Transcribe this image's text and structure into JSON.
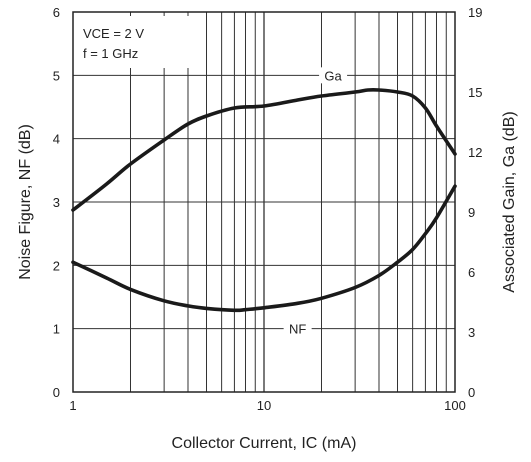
{
  "chart_data": {
    "type": "line",
    "title": "",
    "xlabel": "Collector Current, IC (mA)",
    "ylabel_left": "Noise Figure, NF (dB)",
    "ylabel_right": "Associated Gain, Ga (dB)",
    "x_scale": "log",
    "xlim": [
      1,
      100
    ],
    "ylim_left": [
      0,
      6
    ],
    "ylim_right": [
      0,
      19
    ],
    "x_tick_labels": [
      "1",
      "10",
      "100"
    ],
    "y_left_ticks": [
      0,
      1,
      2,
      3,
      4,
      5,
      6
    ],
    "y_right_ticks": [
      0,
      3,
      6,
      9,
      12,
      15,
      19
    ],
    "grid": true,
    "conditions": [
      "VCE = 2 V",
      "f = 1 GHz"
    ],
    "series": [
      {
        "name": "Ga",
        "axis": "right",
        "x": [
          1,
          1.5,
          2,
          3,
          4,
          5,
          7,
          10,
          15,
          20,
          30,
          35,
          40,
          50,
          60,
          70,
          80,
          100
        ],
        "values": [
          9.1,
          10.4,
          11.4,
          12.6,
          13.4,
          13.8,
          14.2,
          14.3,
          14.6,
          14.8,
          15.0,
          15.1,
          15.1,
          15.0,
          14.8,
          14.2,
          13.3,
          11.9
        ]
      },
      {
        "name": "NF",
        "axis": "left",
        "x": [
          1,
          1.5,
          2,
          3,
          4,
          5,
          7,
          8,
          10,
          15,
          20,
          30,
          40,
          50,
          60,
          70,
          80,
          100
        ],
        "values": [
          2.05,
          1.8,
          1.62,
          1.44,
          1.36,
          1.32,
          1.29,
          1.3,
          1.33,
          1.4,
          1.48,
          1.65,
          1.84,
          2.05,
          2.25,
          2.5,
          2.75,
          3.25
        ]
      }
    ]
  }
}
